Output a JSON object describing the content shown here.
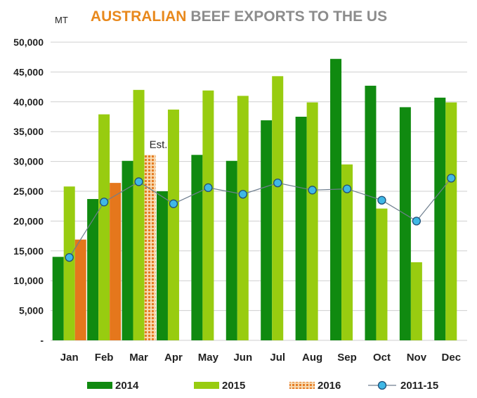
{
  "chart_data": {
    "type": "bar",
    "title_part1": "AUSTRALIAN",
    "title_part2": "BEEF EXPORTS TO THE US",
    "unit_label": "MT",
    "categories": [
      "Jan",
      "Feb",
      "Mar",
      "Apr",
      "May",
      "Jun",
      "Jul",
      "Aug",
      "Sep",
      "Oct",
      "Nov",
      "Dec"
    ],
    "ylim": [
      0,
      50000
    ],
    "yticks": [
      0,
      5000,
      10000,
      15000,
      20000,
      25000,
      30000,
      35000,
      40000,
      45000,
      50000
    ],
    "ytick_labels": [
      "-",
      "5,000",
      "10,000",
      "15,000",
      "20,000",
      "25,000",
      "30,000",
      "35,000",
      "40,000",
      "45,000",
      "50,000"
    ],
    "grid": true,
    "legend_position": "bottom",
    "series": [
      {
        "name": "2014",
        "type": "bar",
        "color": "#108a10",
        "values": [
          14000,
          23700,
          30100,
          25000,
          31100,
          30100,
          36900,
          37500,
          47200,
          42700,
          39100,
          40700
        ]
      },
      {
        "name": "2015",
        "type": "bar",
        "color": "#98cc10",
        "values": [
          25800,
          37900,
          42000,
          38700,
          41900,
          41000,
          44300,
          39900,
          29500,
          22100,
          13100,
          39900
        ]
      },
      {
        "name": "2016",
        "type": "bar",
        "color": "#e5771c",
        "values": [
          16900,
          26400,
          31100,
          null,
          null,
          null,
          null,
          null,
          null,
          null,
          null,
          null
        ],
        "estimated_index": 2
      },
      {
        "name": "2011-15",
        "type": "line",
        "color": "#3fb8e6",
        "values": [
          13900,
          23200,
          26600,
          22900,
          25600,
          24500,
          26400,
          25200,
          25400,
          23500,
          20000,
          27200
        ]
      }
    ],
    "annotations": [
      {
        "text": "Est.",
        "category": "Mar"
      }
    ]
  }
}
